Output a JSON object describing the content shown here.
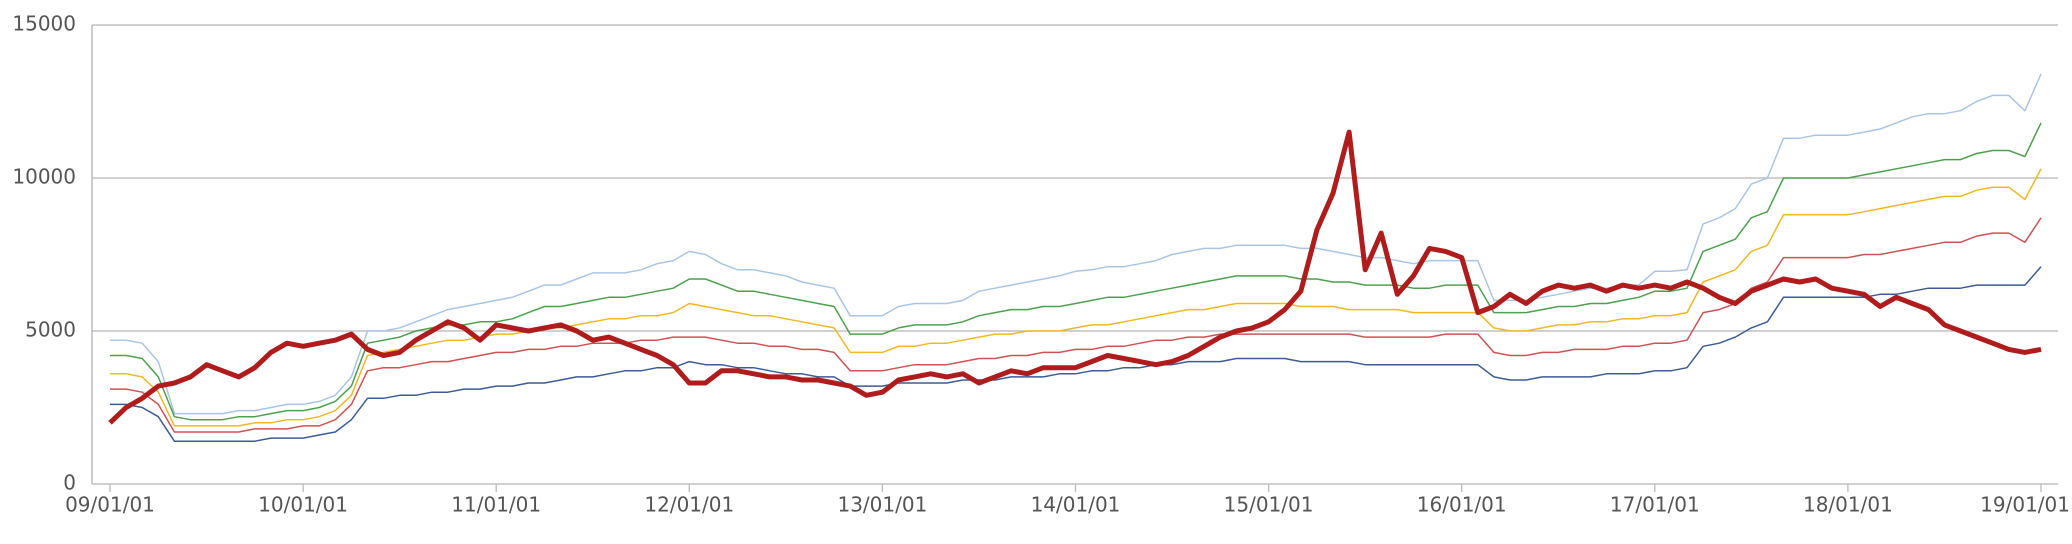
{
  "chart_data": {
    "type": "line",
    "categories": [
      "09/01/01",
      null,
      null,
      null,
      null,
      null,
      null,
      null,
      null,
      null,
      null,
      null,
      "10/01/01",
      null,
      null,
      null,
      null,
      null,
      null,
      null,
      null,
      null,
      null,
      null,
      "11/01/01",
      null,
      null,
      null,
      null,
      null,
      null,
      null,
      null,
      null,
      null,
      null,
      "12/01/01",
      null,
      null,
      null,
      null,
      null,
      null,
      null,
      null,
      null,
      null,
      null,
      "13/01/01",
      null,
      null,
      null,
      null,
      null,
      null,
      null,
      null,
      null,
      null,
      null,
      "14/01/01",
      null,
      null,
      null,
      null,
      null,
      null,
      null,
      null,
      null,
      null,
      null,
      "15/01/01",
      null,
      null,
      null,
      null,
      null,
      null,
      null,
      null,
      null,
      null,
      null,
      "16/01/01",
      null,
      null,
      null,
      null,
      null,
      null,
      null,
      null,
      null,
      null,
      null,
      "17/01/01",
      null,
      null,
      null,
      null,
      null,
      null,
      null,
      null,
      null,
      null,
      null,
      "18/01/01",
      null,
      null,
      null,
      null,
      null,
      null,
      null,
      null,
      null,
      null,
      null,
      "19/01/01"
    ],
    "ylim": [
      0,
      15000
    ],
    "yticks": [
      0,
      5000,
      10000,
      15000
    ],
    "grid": true,
    "series": [
      {
        "color": "#a9c5e6",
        "width": 1.5,
        "values": [
          4700,
          4700,
          4600,
          4000,
          2300,
          2300,
          2300,
          2300,
          2400,
          2400,
          2500,
          2600,
          2600,
          2700,
          2900,
          3500,
          5000,
          5000,
          5100,
          5300,
          5500,
          5700,
          5800,
          5900,
          6000,
          6100,
          6300,
          6500,
          6500,
          6700,
          6900,
          6900,
          6900,
          7000,
          7200,
          7300,
          7600,
          7500,
          7200,
          7000,
          7000,
          6900,
          6800,
          6600,
          6500,
          6400,
          5500,
          5500,
          5500,
          5800,
          5900,
          5900,
          5900,
          6000,
          6300,
          6400,
          6500,
          6600,
          6700,
          6800,
          6950,
          7000,
          7100,
          7100,
          7200,
          7300,
          7500,
          7600,
          7700,
          7700,
          7800,
          7800,
          7800,
          7800,
          7700,
          7700,
          7600,
          7500,
          7400,
          7400,
          7300,
          7200,
          7300,
          7300,
          7300,
          7300,
          6000,
          6000,
          6000,
          6100,
          6200,
          6300,
          6400,
          6400,
          6500,
          6500,
          6950,
          6950,
          7000,
          8500,
          8700,
          9000,
          9800,
          10000,
          11300,
          11300,
          11400,
          11400,
          11400,
          11500,
          11600,
          11800,
          12000,
          12100,
          12100,
          12200,
          12500,
          12700,
          12700,
          12200,
          13400
        ]
      },
      {
        "color": "#4ca24c",
        "width": 1.5,
        "values": [
          4200,
          4200,
          4100,
          3500,
          2200,
          2100,
          2100,
          2100,
          2200,
          2200,
          2300,
          2400,
          2400,
          2500,
          2700,
          3200,
          4600,
          4700,
          4800,
          5000,
          5100,
          5200,
          5200,
          5300,
          5300,
          5400,
          5600,
          5800,
          5800,
          5900,
          6000,
          6100,
          6100,
          6200,
          6300,
          6400,
          6700,
          6700,
          6500,
          6300,
          6300,
          6200,
          6100,
          6000,
          5900,
          5800,
          4900,
          4900,
          4900,
          5100,
          5200,
          5200,
          5200,
          5300,
          5500,
          5600,
          5700,
          5700,
          5800,
          5800,
          5900,
          6000,
          6100,
          6100,
          6200,
          6300,
          6400,
          6500,
          6600,
          6700,
          6800,
          6800,
          6800,
          6800,
          6700,
          6700,
          6600,
          6600,
          6500,
          6500,
          6500,
          6400,
          6400,
          6500,
          6500,
          6500,
          5600,
          5600,
          5600,
          5700,
          5800,
          5800,
          5900,
          5900,
          6000,
          6100,
          6300,
          6300,
          6400,
          7600,
          7800,
          8000,
          8700,
          8900,
          10000,
          10000,
          10000,
          10000,
          10000,
          10100,
          10200,
          10300,
          10400,
          10500,
          10600,
          10600,
          10800,
          10900,
          10900,
          10700,
          11800
        ]
      },
      {
        "color": "#f2b822",
        "width": 1.5,
        "values": [
          3600,
          3600,
          3500,
          3000,
          1900,
          1900,
          1900,
          1900,
          1900,
          2000,
          2000,
          2100,
          2100,
          2200,
          2400,
          2900,
          4200,
          4300,
          4400,
          4500,
          4600,
          4700,
          4700,
          4800,
          4900,
          4900,
          5000,
          5100,
          5100,
          5200,
          5300,
          5400,
          5400,
          5500,
          5500,
          5600,
          5900,
          5800,
          5700,
          5600,
          5500,
          5500,
          5400,
          5300,
          5200,
          5100,
          4300,
          4300,
          4300,
          4500,
          4500,
          4600,
          4600,
          4700,
          4800,
          4900,
          4900,
          5000,
          5000,
          5000,
          5100,
          5200,
          5200,
          5300,
          5400,
          5500,
          5600,
          5700,
          5700,
          5800,
          5900,
          5900,
          5900,
          5900,
          5800,
          5800,
          5800,
          5700,
          5700,
          5700,
          5700,
          5600,
          5600,
          5600,
          5600,
          5600,
          5100,
          5000,
          5000,
          5100,
          5200,
          5200,
          5300,
          5300,
          5400,
          5400,
          5500,
          5500,
          5600,
          6600,
          6800,
          7000,
          7600,
          7800,
          8800,
          8800,
          8800,
          8800,
          8800,
          8900,
          9000,
          9100,
          9200,
          9300,
          9400,
          9400,
          9600,
          9700,
          9700,
          9300,
          10300
        ]
      },
      {
        "color": "#d05252",
        "width": 1.5,
        "values": [
          3100,
          3100,
          3000,
          2600,
          1700,
          1700,
          1700,
          1700,
          1700,
          1800,
          1800,
          1800,
          1900,
          1900,
          2100,
          2600,
          3700,
          3800,
          3800,
          3900,
          4000,
          4000,
          4100,
          4200,
          4300,
          4300,
          4400,
          4400,
          4500,
          4500,
          4600,
          4600,
          4600,
          4700,
          4700,
          4800,
          4800,
          4800,
          4700,
          4600,
          4600,
          4500,
          4500,
          4400,
          4400,
          4300,
          3700,
          3700,
          3700,
          3800,
          3900,
          3900,
          3900,
          4000,
          4100,
          4100,
          4200,
          4200,
          4300,
          4300,
          4400,
          4400,
          4500,
          4500,
          4600,
          4700,
          4700,
          4800,
          4800,
          4900,
          4900,
          4900,
          4900,
          4900,
          4900,
          4900,
          4900,
          4900,
          4800,
          4800,
          4800,
          4800,
          4800,
          4900,
          4900,
          4900,
          4300,
          4200,
          4200,
          4300,
          4300,
          4400,
          4400,
          4400,
          4500,
          4500,
          4600,
          4600,
          4700,
          5600,
          5700,
          5900,
          6400,
          6600,
          7400,
          7400,
          7400,
          7400,
          7400,
          7500,
          7500,
          7600,
          7700,
          7800,
          7900,
          7900,
          8100,
          8200,
          8200,
          7900,
          8700
        ]
      },
      {
        "color": "#3b5b99",
        "width": 1.5,
        "values": [
          2600,
          2600,
          2500,
          2200,
          1400,
          1400,
          1400,
          1400,
          1400,
          1400,
          1500,
          1500,
          1500,
          1600,
          1700,
          2100,
          2800,
          2800,
          2900,
          2900,
          3000,
          3000,
          3100,
          3100,
          3200,
          3200,
          3300,
          3300,
          3400,
          3500,
          3500,
          3600,
          3700,
          3700,
          3800,
          3800,
          4000,
          3900,
          3900,
          3800,
          3800,
          3700,
          3600,
          3600,
          3500,
          3500,
          3200,
          3200,
          3200,
          3300,
          3300,
          3300,
          3300,
          3400,
          3400,
          3400,
          3500,
          3500,
          3500,
          3600,
          3600,
          3700,
          3700,
          3800,
          3800,
          3900,
          3900,
          4000,
          4000,
          4000,
          4100,
          4100,
          4100,
          4100,
          4000,
          4000,
          4000,
          4000,
          3900,
          3900,
          3900,
          3900,
          3900,
          3900,
          3900,
          3900,
          3500,
          3400,
          3400,
          3500,
          3500,
          3500,
          3500,
          3600,
          3600,
          3600,
          3700,
          3700,
          3800,
          4500,
          4600,
          4800,
          5100,
          5300,
          6100,
          6100,
          6100,
          6100,
          6100,
          6100,
          6200,
          6200,
          6300,
          6400,
          6400,
          6400,
          6500,
          6500,
          6500,
          6500,
          7100
        ]
      },
      {
        "color": "#b01c1c",
        "width": 5,
        "values": [
          2000,
          2500,
          2800,
          3200,
          3300,
          3500,
          3900,
          3700,
          3500,
          3800,
          4300,
          4600,
          4500,
          4600,
          4700,
          4900,
          4400,
          4200,
          4300,
          4700,
          5000,
          5300,
          5100,
          4700,
          5200,
          5100,
          5000,
          5100,
          5200,
          5000,
          4700,
          4800,
          4600,
          4400,
          4200,
          3900,
          3300,
          3300,
          3700,
          3700,
          3600,
          3500,
          3500,
          3400,
          3400,
          3300,
          3200,
          2900,
          3000,
          3400,
          3500,
          3600,
          3500,
          3600,
          3300,
          3500,
          3700,
          3600,
          3800,
          3800,
          3800,
          4000,
          4200,
          4100,
          4000,
          3900,
          4000,
          4200,
          4500,
          4800,
          5000,
          5100,
          5300,
          5700,
          6300,
          8300,
          9500,
          11500,
          7000,
          8200,
          6200,
          6800,
          7700,
          7600,
          7400,
          5600,
          5800,
          6200,
          5900,
          6300,
          6500,
          6400,
          6500,
          6300,
          6500,
          6400,
          6500,
          6400,
          6600,
          6400,
          6100,
          5900,
          6300,
          6500,
          6700,
          6600,
          6700,
          6400,
          6300,
          6200,
          5800,
          6100,
          5900,
          5700,
          5200,
          5000,
          4800,
          4600,
          4400,
          4300,
          4400
        ]
      }
    ]
  }
}
